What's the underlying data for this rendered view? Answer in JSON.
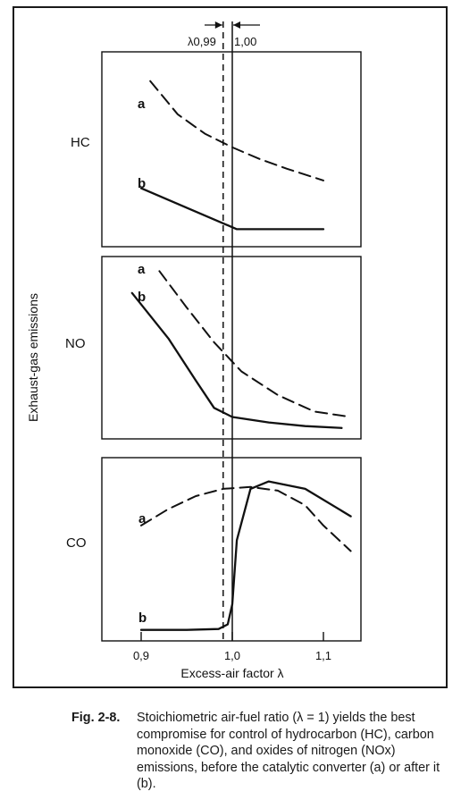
{
  "ylabel": "Exhaust-gas emissions",
  "xlabel": "Excess-air factor λ",
  "lambda_marks": {
    "low": "λ0,99",
    "high": "1,00"
  },
  "colors": {
    "ink": "#111111",
    "frame": "#1a1a1a"
  },
  "caption": {
    "label": "Fig. 2-8.",
    "text": "Stoichiometric air-fuel ratio (λ = 1) yields the best compromise for control of hydrocarbon (HC), carbon monoxide (CO), and oxides of nitrogen (NOx) emissions, before the catalytic converter (a) or after it (b)."
  },
  "chart_data": [
    {
      "type": "line",
      "panel": "HC",
      "xlim": [
        0.9,
        1.14
      ],
      "x_ticks": [],
      "series": [
        {
          "name": "a",
          "style": "dashed",
          "x": [
            0.91,
            0.94,
            0.97,
            1.0,
            1.03,
            1.06,
            1.1
          ],
          "y": [
            0.85,
            0.68,
            0.58,
            0.51,
            0.45,
            0.4,
            0.34
          ]
        },
        {
          "name": "b",
          "style": "solid",
          "x": [
            0.9,
            0.95,
            1.005,
            1.05,
            1.1
          ],
          "y": [
            0.3,
            0.2,
            0.09,
            0.09,
            0.09
          ]
        }
      ]
    },
    {
      "type": "line",
      "panel": "NO",
      "xlim": [
        0.9,
        1.14
      ],
      "x_ticks": [],
      "series": [
        {
          "name": "a",
          "style": "dashed",
          "x": [
            0.92,
            0.95,
            0.98,
            1.01,
            1.05,
            1.09,
            1.13
          ],
          "y": [
            0.92,
            0.72,
            0.53,
            0.37,
            0.24,
            0.15,
            0.12
          ]
        },
        {
          "name": "b",
          "style": "solid",
          "x": [
            0.89,
            0.93,
            0.96,
            0.98,
            1.0,
            1.04,
            1.08,
            1.12
          ],
          "y": [
            0.8,
            0.55,
            0.32,
            0.17,
            0.12,
            0.09,
            0.07,
            0.06
          ]
        }
      ]
    },
    {
      "type": "line",
      "panel": "CO",
      "xlabel": "Excess-air factor λ",
      "xlim": [
        0.88,
        1.14
      ],
      "x_ticks": [
        0.9,
        1.0,
        1.1
      ],
      "x_tick_labels": [
        "0,9",
        "1,0",
        "1,1"
      ],
      "series": [
        {
          "name": "a",
          "style": "dashed",
          "x": [
            0.9,
            0.93,
            0.96,
            0.99,
            1.02,
            1.05,
            1.08,
            1.1,
            1.13
          ],
          "y": [
            0.63,
            0.72,
            0.79,
            0.83,
            0.84,
            0.82,
            0.74,
            0.63,
            0.49
          ]
        },
        {
          "name": "b",
          "style": "solid",
          "x": [
            0.9,
            0.95,
            0.985,
            0.995,
            1.0,
            1.005,
            1.02,
            1.04,
            1.08,
            1.13
          ],
          "y": [
            0.06,
            0.06,
            0.065,
            0.09,
            0.2,
            0.55,
            0.83,
            0.87,
            0.83,
            0.68
          ]
        }
      ]
    }
  ]
}
